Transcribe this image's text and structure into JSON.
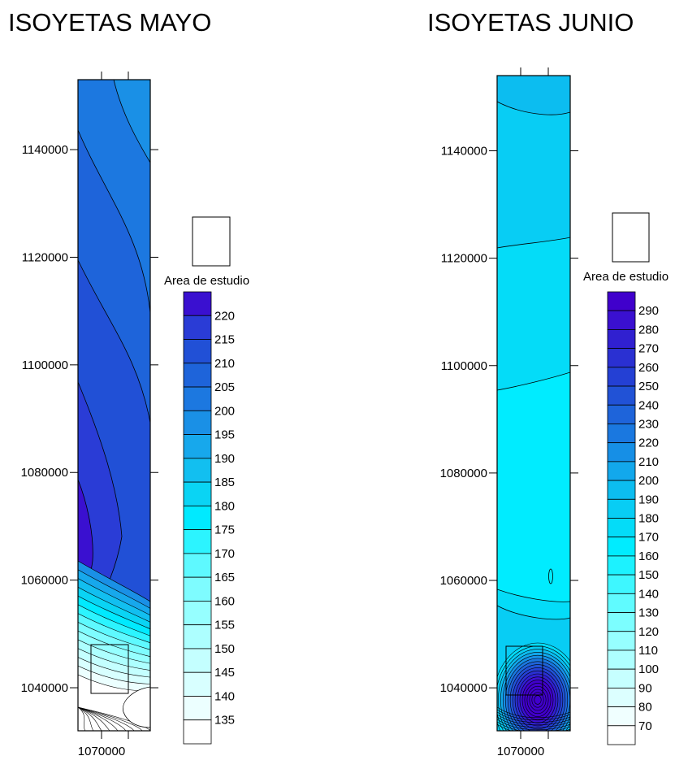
{
  "chart_data": [
    {
      "type": "heatmap",
      "title": "ISOYETAS MAYO",
      "subtype": "contour map",
      "xlabel": "",
      "ylabel": "",
      "x_ticks": [
        "1070000"
      ],
      "y_ticks": [
        "1040000",
        "1060000",
        "1080000",
        "1100000",
        "1120000",
        "1140000"
      ],
      "ylim": [
        1032000,
        1153000
      ],
      "legend_label": "Area de estudio",
      "levels": [
        135,
        140,
        145,
        150,
        155,
        160,
        165,
        170,
        175,
        180,
        185,
        190,
        195,
        200,
        205,
        210,
        215,
        220
      ],
      "colors": [
        "#ffffff",
        "#ecffff",
        "#d8ffff",
        "#c4ffff",
        "#adffff",
        "#96ffff",
        "#7efcff",
        "#5ef9ff",
        "#2cf4ff",
        "#00eaff",
        "#0ad4f4",
        "#12bff0",
        "#17a8ec",
        "#1a90e6",
        "#1c78e0",
        "#1e64da",
        "#2150d6",
        "#2a3cd6",
        "#3a10d0"
      ],
      "grid": false,
      "legend_position": "right"
    },
    {
      "type": "heatmap",
      "title": "ISOYETAS JUNIO",
      "subtype": "contour map",
      "xlabel": "",
      "ylabel": "",
      "x_ticks": [
        "1070000"
      ],
      "y_ticks": [
        "1040000",
        "1060000",
        "1080000",
        "1100000",
        "1120000",
        "1140000"
      ],
      "ylim": [
        1032000,
        1154000
      ],
      "legend_label": "Area de estudio",
      "levels": [
        70,
        80,
        90,
        100,
        110,
        120,
        130,
        140,
        150,
        160,
        170,
        180,
        190,
        200,
        210,
        220,
        230,
        240,
        250,
        260,
        270,
        280,
        290
      ],
      "colors": [
        "#ffffff",
        "#f0ffff",
        "#dcffff",
        "#c6ffff",
        "#aeffff",
        "#96ffff",
        "#7cfeff",
        "#60fbff",
        "#3ef7ff",
        "#1cf2ff",
        "#00ecff",
        "#04dcf8",
        "#08cdf4",
        "#0cbdf0",
        "#12a8ec",
        "#168fe6",
        "#1a78e0",
        "#1e64da",
        "#2152d6",
        "#2440d4",
        "#2a30d2",
        "#3020d0",
        "#3a10d0",
        "#4000cc"
      ],
      "grid": false,
      "legend_position": "right"
    }
  ]
}
